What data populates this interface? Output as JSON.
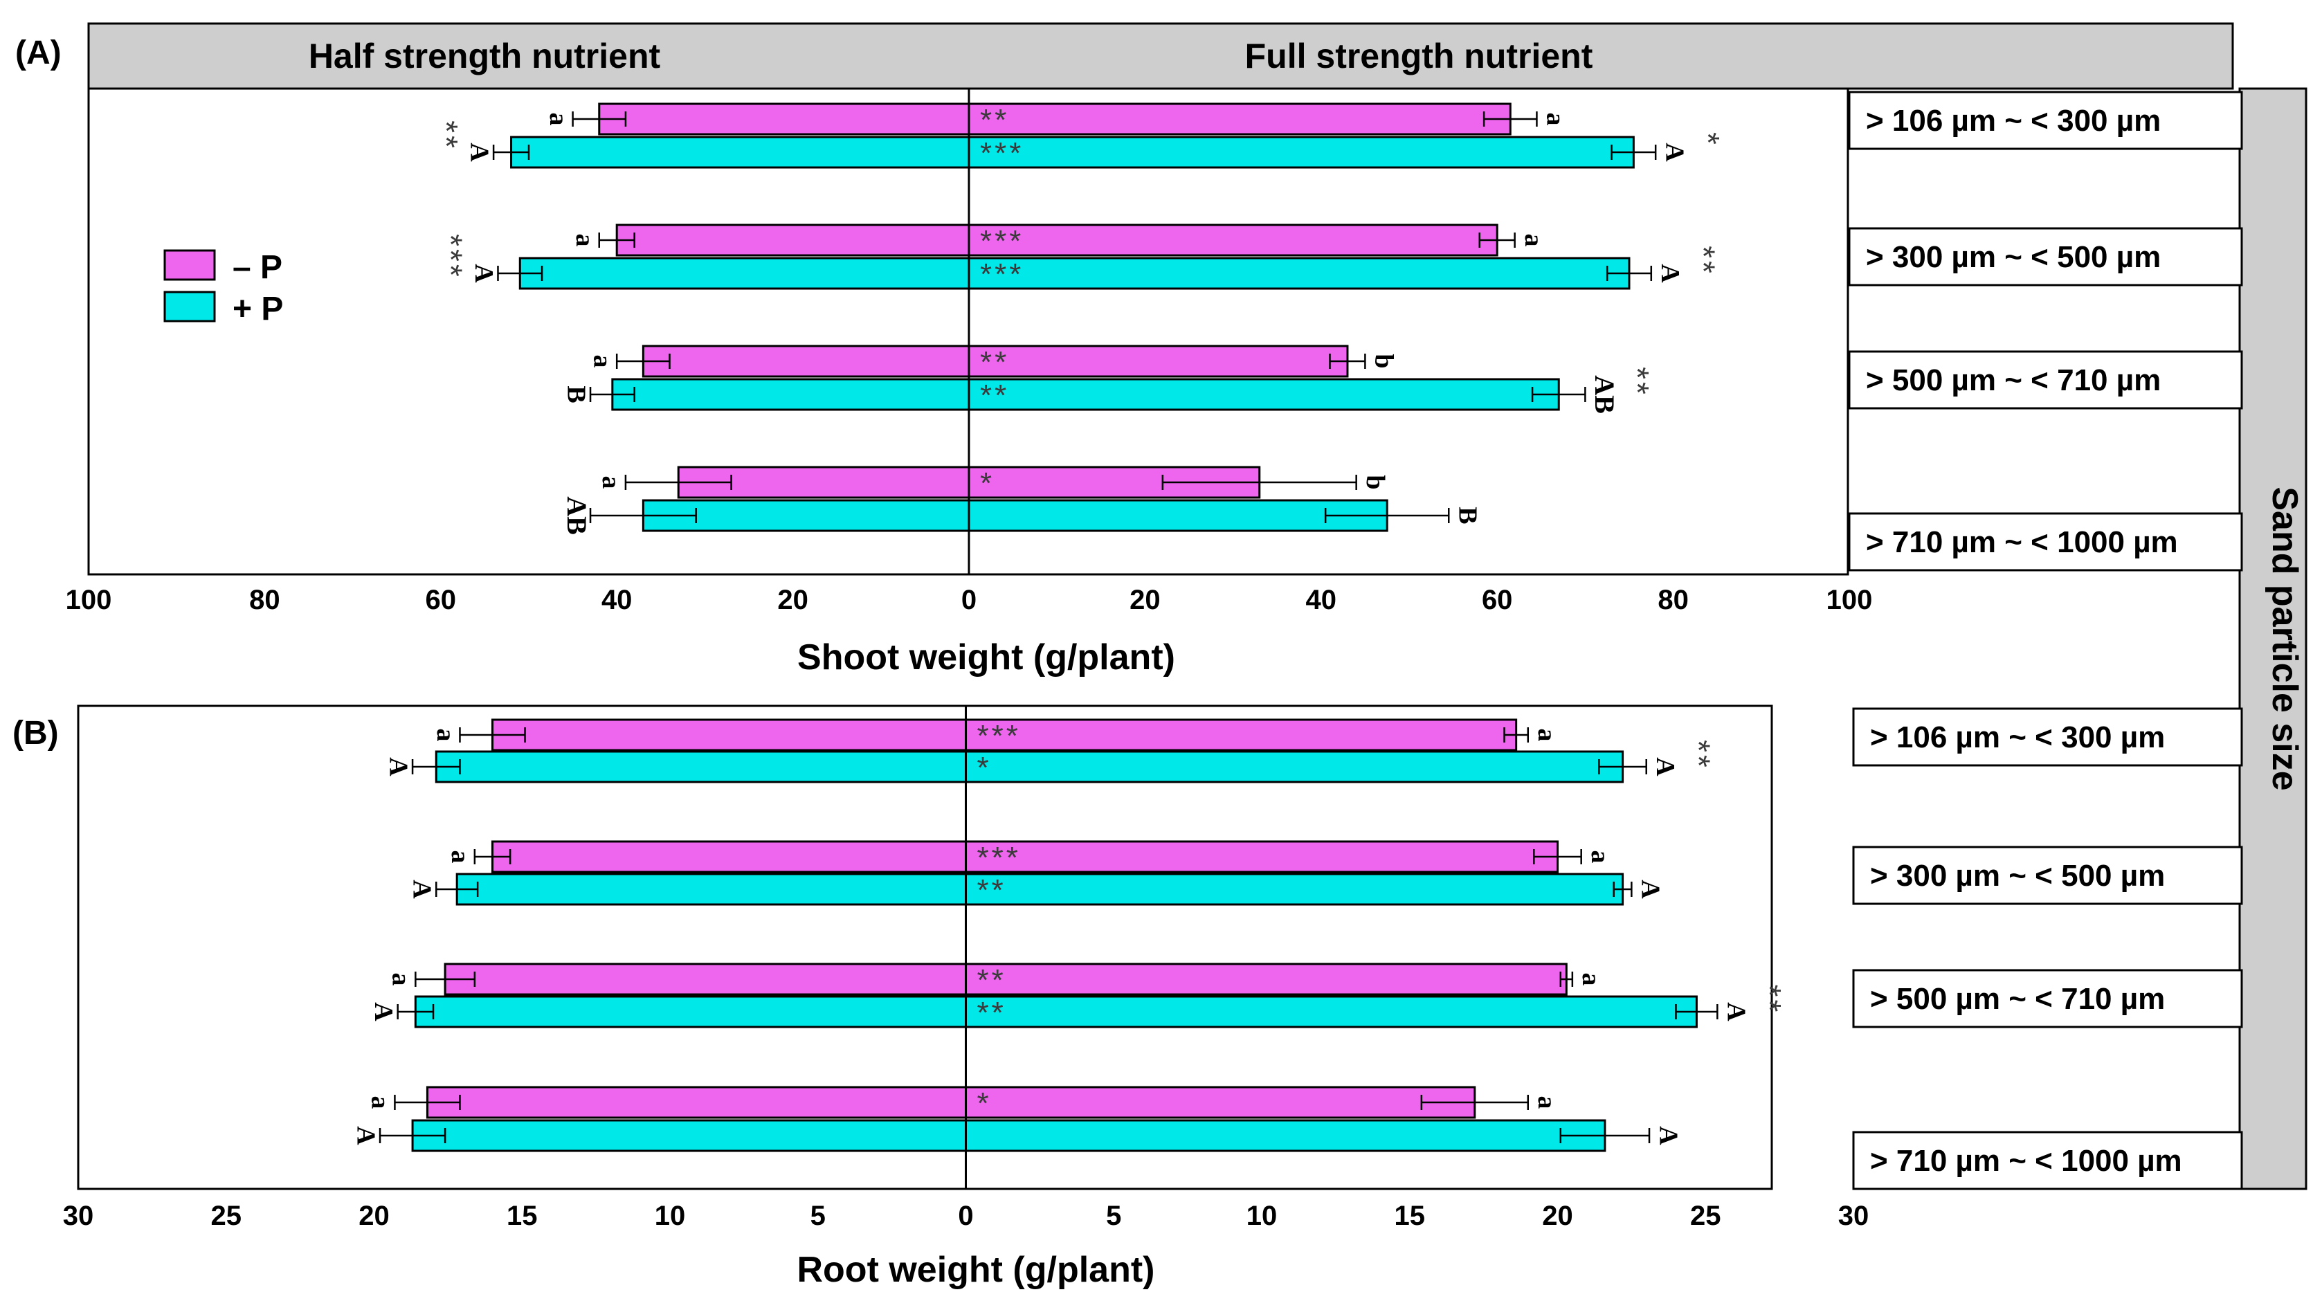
{
  "panel_labels": [
    "(A)",
    "(B)"
  ],
  "headers": {
    "half": "Half strength nutrient",
    "full": "Full strength nutrient"
  },
  "side_label": "Sand particle size",
  "legend": [
    {
      "label": "– P",
      "color": "#ee66ee"
    },
    {
      "label": "+ P",
      "color": "#00e8e8"
    }
  ],
  "colors": {
    "minus_p": "#ee66ee",
    "plus_p": "#00e8e8",
    "header_bg": "#cecece"
  },
  "chart_data": [
    {
      "type": "bar",
      "orientation": "horizontal-diverging",
      "xlabel": "Shoot weight (g/plant)",
      "xlim": [
        -100,
        100
      ],
      "ticks": [
        100,
        80,
        60,
        40,
        20,
        0,
        20,
        40,
        60,
        80,
        100
      ],
      "categories": [
        "> 106 µm ~ < 300 µm",
        "> 300 µm ~ < 500 µm",
        "> 500 µm ~ < 710 µm",
        "> 710 µm ~ < 1000 µm"
      ],
      "series": [
        {
          "name": "– P",
          "half_values": [
            42,
            40,
            37,
            33
          ],
          "half_err": [
            3,
            2,
            3,
            6
          ],
          "full_values": [
            61.5,
            60,
            43,
            33
          ],
          "full_err": [
            3,
            2,
            2,
            11
          ]
        },
        {
          "name": "+ P",
          "half_values": [
            52,
            51,
            40.5,
            37
          ],
          "half_err": [
            2,
            2.5,
            2.5,
            6
          ],
          "full_values": [
            75.5,
            75,
            67,
            47.5
          ],
          "full_err": [
            2.5,
            2.5,
            3,
            7
          ]
        }
      ],
      "half_letters": [
        [
          "a",
          "A"
        ],
        [
          "a",
          "A"
        ],
        [
          "a",
          "B"
        ],
        [
          "a",
          "AB"
        ]
      ],
      "full_letters": [
        [
          "a",
          "A"
        ],
        [
          "a",
          "A"
        ],
        [
          "b",
          "AB"
        ],
        [
          "b",
          "B"
        ]
      ],
      "center_stars": [
        [
          "**",
          "***"
        ],
        [
          "***",
          "***"
        ],
        [
          "**",
          "**"
        ],
        [
          "*",
          ""
        ]
      ],
      "left_stars": [
        "**",
        "***",
        "",
        ""
      ],
      "right_stars": [
        "*",
        "**",
        "**",
        ""
      ]
    },
    {
      "type": "bar",
      "orientation": "horizontal-diverging",
      "xlabel": "Root weight (g/plant)",
      "xlim": [
        -30,
        30
      ],
      "ticks": [
        30,
        25,
        20,
        15,
        10,
        5,
        0,
        5,
        10,
        15,
        20,
        25,
        30
      ],
      "categories": [
        "> 106 µm ~ < 300 µm",
        "> 300 µm ~ < 500 µm",
        "> 500 µm ~ < 710 µm",
        "> 710 µm ~ < 1000 µm"
      ],
      "series": [
        {
          "name": "– P",
          "half_values": [
            16,
            16,
            17.6,
            18.2
          ],
          "half_err": [
            1.1,
            0.6,
            1.0,
            1.1
          ],
          "full_values": [
            18.6,
            20,
            20.3,
            17.2
          ],
          "full_err": [
            0.4,
            0.8,
            0.2,
            1.8
          ]
        },
        {
          "name": "+ P",
          "half_values": [
            17.9,
            17.2,
            18.6,
            18.7
          ],
          "half_err": [
            0.8,
            0.7,
            0.6,
            1.1
          ],
          "full_values": [
            22.2,
            22.2,
            24.7,
            21.6
          ],
          "full_err": [
            0.8,
            0.3,
            0.7,
            1.5
          ]
        }
      ],
      "half_letters": [
        [
          "a",
          "A"
        ],
        [
          "a",
          "A"
        ],
        [
          "a",
          "A"
        ],
        [
          "a",
          "A"
        ]
      ],
      "full_letters": [
        [
          "a",
          "A"
        ],
        [
          "a",
          "A"
        ],
        [
          "a",
          "A"
        ],
        [
          "a",
          "A"
        ]
      ],
      "center_stars": [
        [
          "***",
          "*"
        ],
        [
          "***",
          "**"
        ],
        [
          "**",
          "**"
        ],
        [
          "*",
          ""
        ]
      ],
      "left_stars": [
        "",
        "",
        "",
        ""
      ],
      "right_stars": [
        "**",
        "",
        "**",
        ""
      ]
    }
  ]
}
